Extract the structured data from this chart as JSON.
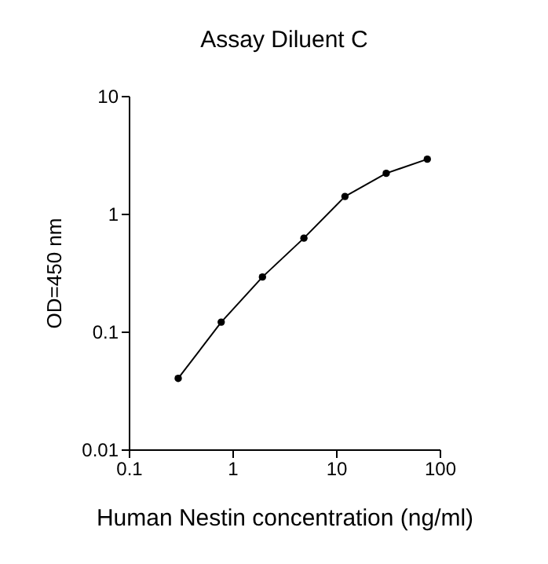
{
  "chart_data": {
    "type": "line",
    "title": "Assay Diluent C",
    "xlabel": "Human Nestin concentration (ng/ml)",
    "ylabel": "OD=450 nm",
    "x": [
      0.3,
      0.78,
      1.95,
      4.9,
      12.2,
      30.5,
      76
    ],
    "series": [
      {
        "color": "#000000",
        "values": [
          0.04,
          0.12,
          0.29,
          0.62,
          1.4,
          2.2,
          2.9
        ]
      }
    ],
    "xlim": [
      0.1,
      100
    ],
    "ylim": [
      0.01,
      10
    ],
    "xticks": [
      0.1,
      1,
      10,
      100
    ],
    "yticks": [
      0.01,
      0.1,
      1,
      10
    ],
    "log": "xy",
    "grid": false,
    "marker": "circle",
    "line_style": "solid"
  }
}
